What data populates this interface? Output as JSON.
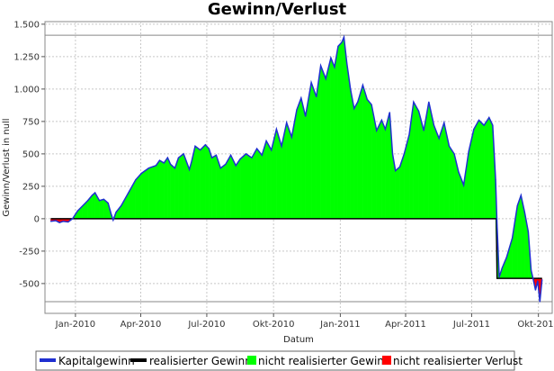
{
  "chart_data": {
    "type": "area",
    "title": "Gewinn/Verlust",
    "xlabel": "Datum",
    "ylabel": "Gewinn/Verlust in null",
    "ylim": [
      -730,
      1520
    ],
    "yticks": [
      -500,
      -250,
      0,
      250,
      500,
      750,
      1000,
      1250,
      1500
    ],
    "ytick_labels": [
      "-500",
      "-250",
      "0",
      "250",
      "500",
      "750",
      "1.000",
      "1.250",
      "1.500"
    ],
    "xlim": [
      "2009-11-20",
      "2011-10-20"
    ],
    "xticks": [
      "2010-01-01",
      "2010-04-01",
      "2010-07-01",
      "2010-10-01",
      "2011-01-01",
      "2011-04-01",
      "2011-07-01",
      "2011-10-01"
    ],
    "xtick_labels": [
      "Jan-2010",
      "Apr-2010",
      "Jul-2010",
      "Okt-2010",
      "Jan-2011",
      "Apr-2011",
      "Jul-2011",
      "Okt-2011"
    ],
    "reference_lines": [
      1415,
      -640
    ],
    "grid": true,
    "legend_position": "bottom",
    "colors": {
      "kapitalgewinn": "#1f2fd0",
      "realisierter_gewinn": "#000000",
      "nicht_realisierter_gewinn": "#00ff00",
      "nicht_realisierter_verlust": "#ff0000"
    },
    "series": [
      {
        "name": "Kapitalgewinn",
        "points": [
          [
            "2009-11-28",
            -20
          ],
          [
            "2009-12-05",
            -15
          ],
          [
            "2009-12-10",
            -30
          ],
          [
            "2009-12-15",
            -20
          ],
          [
            "2009-12-22",
            -25
          ],
          [
            "2009-12-28",
            0
          ],
          [
            "2010-01-04",
            60
          ],
          [
            "2010-01-11",
            100
          ],
          [
            "2010-01-18",
            140
          ],
          [
            "2010-01-24",
            180
          ],
          [
            "2010-01-28",
            200
          ],
          [
            "2010-02-03",
            140
          ],
          [
            "2010-02-09",
            150
          ],
          [
            "2010-02-15",
            120
          ],
          [
            "2010-02-19",
            40
          ],
          [
            "2010-02-22",
            -10
          ],
          [
            "2010-02-26",
            50
          ],
          [
            "2010-03-05",
            100
          ],
          [
            "2010-03-15",
            200
          ],
          [
            "2010-03-25",
            300
          ],
          [
            "2010-04-02",
            350
          ],
          [
            "2010-04-12",
            390
          ],
          [
            "2010-04-22",
            410
          ],
          [
            "2010-04-27",
            450
          ],
          [
            "2010-05-03",
            430
          ],
          [
            "2010-05-08",
            470
          ],
          [
            "2010-05-12",
            420
          ],
          [
            "2010-05-18",
            390
          ],
          [
            "2010-05-23",
            470
          ],
          [
            "2010-05-30",
            500
          ],
          [
            "2010-06-07",
            380
          ],
          [
            "2010-06-10",
            440
          ],
          [
            "2010-06-15",
            560
          ],
          [
            "2010-06-22",
            530
          ],
          [
            "2010-06-29",
            570
          ],
          [
            "2010-07-04",
            540
          ],
          [
            "2010-07-08",
            470
          ],
          [
            "2010-07-14",
            490
          ],
          [
            "2010-07-20",
            390
          ],
          [
            "2010-07-27",
            420
          ],
          [
            "2010-08-03",
            490
          ],
          [
            "2010-08-10",
            410
          ],
          [
            "2010-08-16",
            460
          ],
          [
            "2010-08-24",
            500
          ],
          [
            "2010-09-01",
            470
          ],
          [
            "2010-09-08",
            540
          ],
          [
            "2010-09-15",
            490
          ],
          [
            "2010-09-21",
            600
          ],
          [
            "2010-09-28",
            530
          ],
          [
            "2010-10-05",
            690
          ],
          [
            "2010-10-12",
            560
          ],
          [
            "2010-10-19",
            740
          ],
          [
            "2010-10-26",
            630
          ],
          [
            "2010-11-02",
            840
          ],
          [
            "2010-11-08",
            930
          ],
          [
            "2010-11-14",
            790
          ],
          [
            "2010-11-22",
            1050
          ],
          [
            "2010-11-29",
            940
          ],
          [
            "2010-12-05",
            1180
          ],
          [
            "2010-12-12",
            1080
          ],
          [
            "2010-12-19",
            1240
          ],
          [
            "2010-12-24",
            1170
          ],
          [
            "2010-12-29",
            1330
          ],
          [
            "2011-01-03",
            1360
          ],
          [
            "2011-01-06",
            1400
          ],
          [
            "2011-01-10",
            1200
          ],
          [
            "2011-01-15",
            1000
          ],
          [
            "2011-01-20",
            850
          ],
          [
            "2011-01-25",
            900
          ],
          [
            "2011-02-01",
            1030
          ],
          [
            "2011-02-07",
            920
          ],
          [
            "2011-02-13",
            880
          ],
          [
            "2011-02-20",
            680
          ],
          [
            "2011-02-27",
            760
          ],
          [
            "2011-03-04",
            690
          ],
          [
            "2011-03-10",
            820
          ],
          [
            "2011-03-14",
            500
          ],
          [
            "2011-03-18",
            370
          ],
          [
            "2011-03-24",
            400
          ],
          [
            "2011-03-30",
            500
          ],
          [
            "2011-04-06",
            650
          ],
          [
            "2011-04-12",
            900
          ],
          [
            "2011-04-19",
            830
          ],
          [
            "2011-04-26",
            680
          ],
          [
            "2011-05-03",
            900
          ],
          [
            "2011-05-10",
            720
          ],
          [
            "2011-05-17",
            620
          ],
          [
            "2011-05-24",
            740
          ],
          [
            "2011-05-31",
            560
          ],
          [
            "2011-06-07",
            500
          ],
          [
            "2011-06-13",
            360
          ],
          [
            "2011-06-20",
            260
          ],
          [
            "2011-06-27",
            520
          ],
          [
            "2011-07-04",
            690
          ],
          [
            "2011-07-11",
            760
          ],
          [
            "2011-07-18",
            720
          ],
          [
            "2011-07-25",
            780
          ],
          [
            "2011-07-30",
            720
          ],
          [
            "2011-08-03",
            300
          ],
          [
            "2011-08-05",
            -50
          ],
          [
            "2011-08-08",
            -450
          ],
          [
            "2011-08-12",
            -380
          ],
          [
            "2011-08-18",
            -300
          ],
          [
            "2011-08-26",
            -150
          ],
          [
            "2011-09-02",
            100
          ],
          [
            "2011-09-07",
            180
          ],
          [
            "2011-09-12",
            50
          ],
          [
            "2011-09-17",
            -100
          ],
          [
            "2011-09-21",
            -400
          ],
          [
            "2011-09-24",
            -470
          ],
          [
            "2011-09-27",
            -550
          ],
          [
            "2011-09-30",
            -480
          ],
          [
            "2011-10-03",
            -640
          ],
          [
            "2011-10-06",
            -470
          ]
        ]
      },
      {
        "name": "realisierter Gewinn",
        "points": [
          [
            "2009-11-28",
            0
          ],
          [
            "2011-08-04",
            0
          ],
          [
            "2011-08-05",
            -460
          ],
          [
            "2011-10-06",
            -460
          ]
        ]
      },
      {
        "name": "nicht realisierter Gewinn"
      },
      {
        "name": "nicht realisierter Verlust"
      }
    ]
  }
}
